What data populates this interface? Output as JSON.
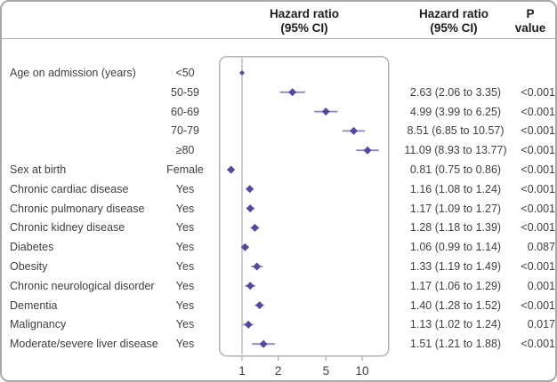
{
  "header": {
    "plot_col_title": "Hazard ratio\n(95% CI)",
    "text_col_title": "Hazard ratio\n(95% CI)",
    "p_col_title": "P\nvalue"
  },
  "colors": {
    "marker": "#54489c",
    "ci_line": "#8d86c3",
    "reference_line": "#c2c2c2",
    "plot_box_border": "#b3b3b3",
    "outer_border": "#a9a9a9",
    "row_text": "#3f3f3f",
    "header_text": "#1c1c1c"
  },
  "chart_data": {
    "type": "scatter",
    "subtype": "forest-plot",
    "title": "",
    "xlabel": "Hazard ratio (95% CI)",
    "x_scale": "log10",
    "x_ticks": [
      1,
      2,
      5,
      10
    ],
    "xlim": [
      0.66,
      17.5
    ],
    "reference_line_x": 1,
    "grid": false,
    "rows": [
      {
        "label": "Age on admission (years)",
        "category": "<50",
        "hr": 1.0,
        "ci_low": null,
        "ci_high": null,
        "hr_ci_text": "",
        "p_text": "",
        "is_reference": true
      },
      {
        "label": "",
        "category": "50-59",
        "hr": 2.63,
        "ci_low": 2.06,
        "ci_high": 3.35,
        "hr_ci_text": "2.63 (2.06 to 3.35)",
        "p_text": "<0.001",
        "is_reference": false
      },
      {
        "label": "",
        "category": "60-69",
        "hr": 4.99,
        "ci_low": 3.99,
        "ci_high": 6.25,
        "hr_ci_text": "4.99 (3.99 to 6.25)",
        "p_text": "<0.001",
        "is_reference": false
      },
      {
        "label": "",
        "category": "70-79",
        "hr": 8.51,
        "ci_low": 6.85,
        "ci_high": 10.57,
        "hr_ci_text": "8.51 (6.85 to 10.57)",
        "p_text": "<0.001",
        "is_reference": false
      },
      {
        "label": "",
        "category": "≥80",
        "hr": 11.09,
        "ci_low": 8.93,
        "ci_high": 13.77,
        "hr_ci_text": "11.09 (8.93 to 13.77)",
        "p_text": "<0.001",
        "is_reference": false
      },
      {
        "label": "Sex at birth",
        "category": "Female",
        "hr": 0.81,
        "ci_low": 0.75,
        "ci_high": 0.86,
        "hr_ci_text": "0.81 (0.75 to 0.86)",
        "p_text": "<0.001",
        "is_reference": false
      },
      {
        "label": "Chronic cardiac disease",
        "category": "Yes",
        "hr": 1.16,
        "ci_low": 1.08,
        "ci_high": 1.24,
        "hr_ci_text": "1.16 (1.08 to 1.24)",
        "p_text": "<0.001",
        "is_reference": false
      },
      {
        "label": "Chronic pulmonary disease",
        "category": "Yes",
        "hr": 1.17,
        "ci_low": 1.09,
        "ci_high": 1.27,
        "hr_ci_text": "1.17 (1.09 to 1.27)",
        "p_text": "<0.001",
        "is_reference": false
      },
      {
        "label": "Chronic kidney disease",
        "category": "Yes",
        "hr": 1.28,
        "ci_low": 1.18,
        "ci_high": 1.39,
        "hr_ci_text": "1.28 (1.18 to 1.39)",
        "p_text": "<0.001",
        "is_reference": false
      },
      {
        "label": "Diabetes",
        "category": "Yes",
        "hr": 1.06,
        "ci_low": 0.99,
        "ci_high": 1.14,
        "hr_ci_text": "1.06 (0.99 to 1.14)",
        "p_text": "0.087",
        "is_reference": false
      },
      {
        "label": "Obesity",
        "category": "Yes",
        "hr": 1.33,
        "ci_low": 1.19,
        "ci_high": 1.49,
        "hr_ci_text": "1.33 (1.19 to 1.49)",
        "p_text": "<0.001",
        "is_reference": false
      },
      {
        "label": "Chronic neurological disorder",
        "category": "Yes",
        "hr": 1.17,
        "ci_low": 1.06,
        "ci_high": 1.29,
        "hr_ci_text": "1.17 (1.06 to 1.29)",
        "p_text": "0.001",
        "is_reference": false
      },
      {
        "label": "Dementia",
        "category": "Yes",
        "hr": 1.4,
        "ci_low": 1.28,
        "ci_high": 1.52,
        "hr_ci_text": "1.40 (1.28 to 1.52)",
        "p_text": "<0.001",
        "is_reference": false
      },
      {
        "label": "Malignancy",
        "category": "Yes",
        "hr": 1.13,
        "ci_low": 1.02,
        "ci_high": 1.24,
        "hr_ci_text": "1.13 (1.02 to 1.24)",
        "p_text": "0.017",
        "is_reference": false
      },
      {
        "label": "Moderate/severe liver disease",
        "category": "Yes",
        "hr": 1.51,
        "ci_low": 1.21,
        "ci_high": 1.88,
        "hr_ci_text": "1.51 (1.21 to 1.88)",
        "p_text": "<0.001",
        "is_reference": false
      }
    ]
  }
}
